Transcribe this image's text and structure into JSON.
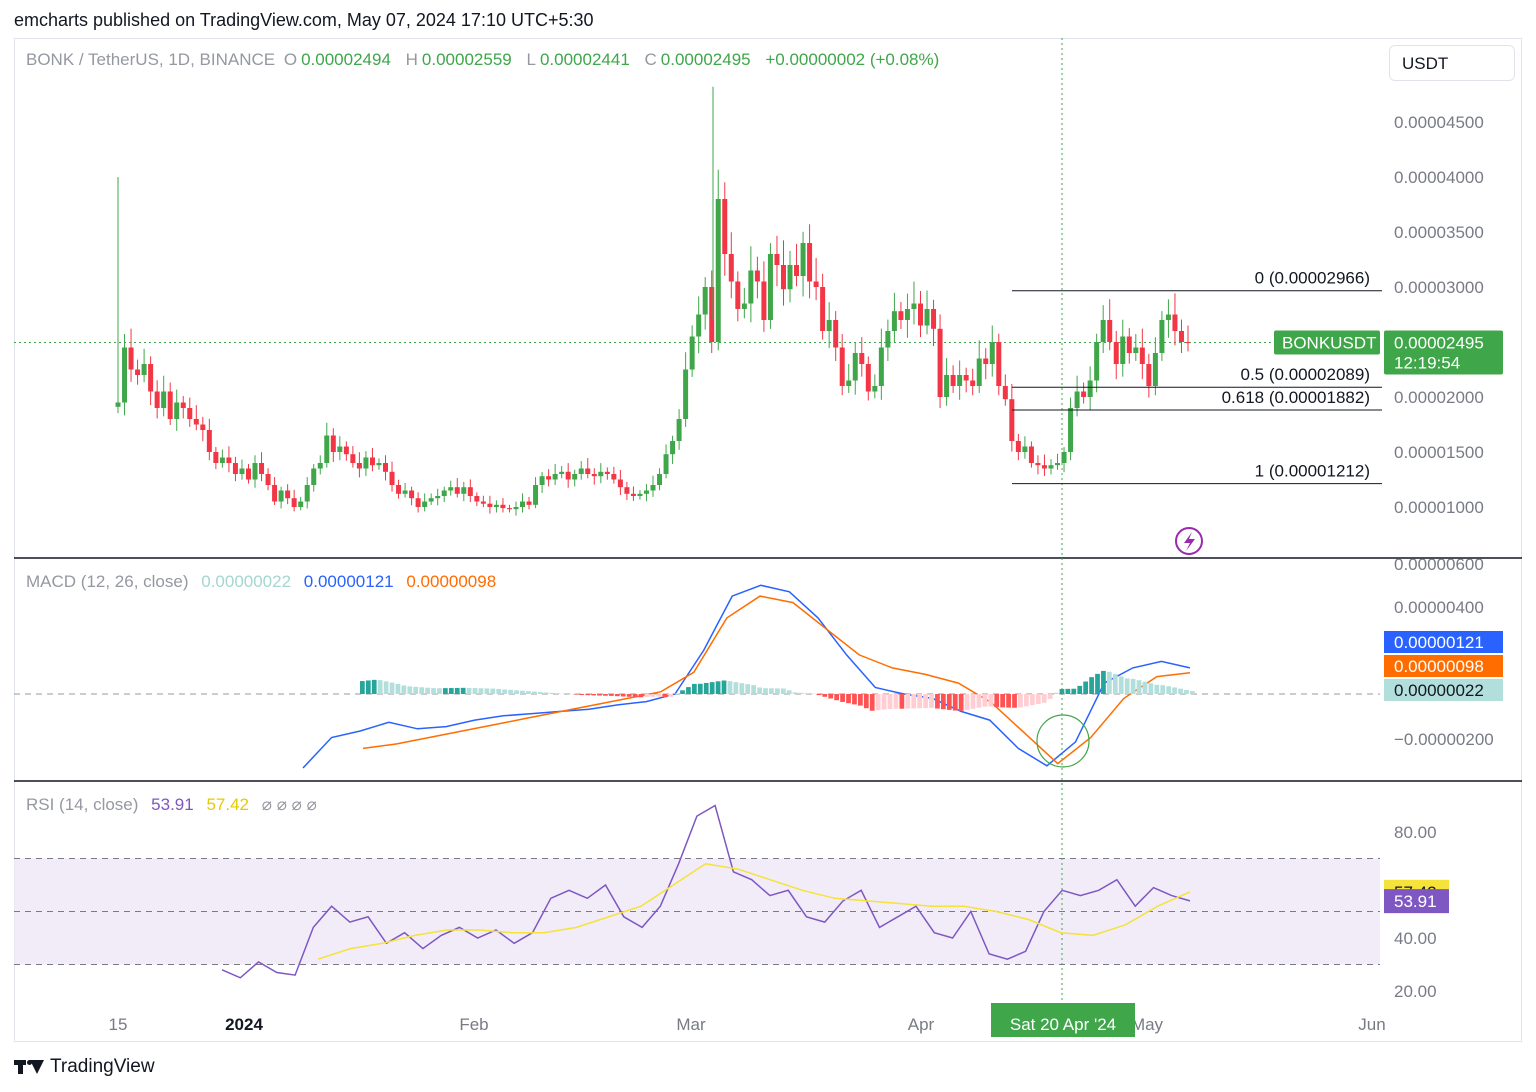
{
  "header": {
    "published": "emcharts published on TradingView.com, May 07, 2024 17:10 UTC+5:30"
  },
  "legend": {
    "symbol": "BONK / TetherUS, 1D, BINANCE",
    "o_label": "O",
    "o_value": "0.00002494",
    "h_label": "H",
    "h_value": "0.00002559",
    "l_label": "L",
    "l_value": "0.00002441",
    "c_label": "C",
    "c_value": "0.00002495",
    "change": "+0.00000002 (+0.08%)"
  },
  "currency_button": "USDT",
  "price_panel": {
    "y_ticks": [
      "0.00004500",
      "0.00004000",
      "0.00003500",
      "0.00003000",
      "0.00002000",
      "0.00001500",
      "0.00001000",
      "0.00000600"
    ],
    "last_price_symbol": "BONKUSDT",
    "last_price": "0.00002495",
    "countdown": "12:19:54",
    "fib_levels": [
      {
        "label": "0 (0.00002966)",
        "value": 2.966e-05
      },
      {
        "label": "0.5 (0.00002089)",
        "value": 2.089e-05
      },
      {
        "label": "0.618 (0.00001882)",
        "value": 1.882e-05
      },
      {
        "label": "1 (0.00001212)",
        "value": 1.212e-05
      }
    ]
  },
  "macd_panel": {
    "legend_name": "MACD (12, 26, close)",
    "hist_value": "0.00000022",
    "macd_value": "0.00000121",
    "signal_value": "0.00000098",
    "y_ticks": [
      "0.00000400",
      "−0.00000200"
    ]
  },
  "rsi_panel": {
    "legend_name": "RSI (14, close)",
    "rsi_value": "53.91",
    "ma_value": "57.42",
    "extra": "⌀ ⌀ ⌀ ⌀",
    "y_ticks": [
      "80.00",
      "40.00",
      "20.00"
    ]
  },
  "time_axis": {
    "labels": [
      "15",
      "2024",
      "Feb",
      "Mar",
      "Apr",
      "May",
      "Jun"
    ],
    "crosshair_label": "Sat 20 Apr '24"
  },
  "footer": {
    "brand": "TradingView"
  },
  "colors": {
    "up": "#3fa64a",
    "down": "#f23645",
    "macd": "#2962ff",
    "signal": "#ff6d00",
    "rsi": "#7e57c2",
    "rsi_ma": "#f5e23a",
    "hist_up_strong": "#26a69a",
    "hist_up_weak": "#b2dfdb",
    "hist_down_strong": "#ff5252",
    "hist_down_weak": "#ffcdd2"
  },
  "chart_data": [
    {
      "type": "candlestick",
      "title": "BONK / TetherUS, 1D, BINANCE",
      "x_range": [
        "2023-12-12",
        "2024-06-01"
      ],
      "ylim": [
        6e-06,
        4.8e-05
      ],
      "closes": [
        1.95e-05,
        2.45e-05,
        2.25e-05,
        2.2e-05,
        2.3e-05,
        2.05e-05,
        1.9e-05,
        2.05e-05,
        1.8e-05,
        1.95e-05,
        1.9e-05,
        1.8e-05,
        1.75e-05,
        1.7e-05,
        1.5e-05,
        1.4e-05,
        1.45e-05,
        1.4e-05,
        1.3e-05,
        1.35e-05,
        1.25e-05,
        1.4e-05,
        1.3e-05,
        1.2e-05,
        1.05e-05,
        1.15e-05,
        1.08e-05,
        1e-05,
        1.05e-05,
        1.2e-05,
        1.35e-05,
        1.4e-05,
        1.65e-05,
        1.5e-05,
        1.55e-05,
        1.48e-05,
        1.4e-05,
        1.35e-05,
        1.45e-05,
        1.38e-05,
        1.4e-05,
        1.32e-05,
        1.2e-05,
        1.12e-05,
        1.15e-05,
        1.08e-05,
        1e-05,
        1.05e-05,
        1.08e-05,
        1.1e-05,
        1.15e-05,
        1.18e-05,
        1.12e-05,
        1.18e-05,
        1.1e-05,
        1.05e-05,
        1.03e-05,
        1e-05,
        1.02e-05,
        9.9e-06,
        9.8e-06,
        1e-05,
        1.05e-05,
        1.02e-05,
        1.2e-05,
        1.28e-05,
        1.25e-05,
        1.3e-05,
        1.32e-05,
        1.25e-05,
        1.3e-05,
        1.35e-05,
        1.3e-05,
        1.28e-05,
        1.32e-05,
        1.3e-05,
        1.25e-05,
        1.18e-05,
        1.12e-05,
        1.1e-05,
        1.12e-05,
        1.15e-05,
        1.2e-05,
        1.3e-05,
        1.48e-05,
        1.6e-05,
        1.8e-05,
        2.25e-05,
        2.55e-05,
        2.75e-05,
        3e-05,
        2.5e-05,
        3.8e-05,
        3.3e-05,
        3.05e-05,
        2.8e-05,
        2.85e-05,
        3.15e-05,
        3.05e-05,
        2.7e-05,
        3.3e-05,
        3.2e-05,
        2.98e-05,
        3.2e-05,
        3.1e-05,
        3.4e-05,
        3.05e-05,
        3e-05,
        2.6e-05,
        2.7e-05,
        2.45e-05,
        2.1e-05,
        2.15e-05,
        2.4e-05,
        2.3e-05,
        2.05e-05,
        2.1e-05,
        2.45e-05,
        2.6e-05,
        2.78e-05,
        2.7e-05,
        2.8e-05,
        2.85e-05,
        2.65e-05,
        2.8e-05,
        2.62e-05,
        2e-05,
        2.2e-05,
        2.1e-05,
        2.2e-05,
        2.15e-05,
        2.1e-05,
        2.35e-05,
        2.3e-05,
        2.5e-05,
        2.1e-05,
        1.98e-05,
        1.6e-05,
        1.5e-05,
        1.55e-05,
        1.4e-05,
        1.38e-05,
        1.35e-05,
        1.38e-05,
        1.4e-05,
        1.5e-05,
        1.9e-05,
        2.05e-05,
        2e-05,
        2.15e-05,
        2.5e-05,
        2.7e-05,
        2.5e-05,
        2.3e-05,
        2.55e-05,
        2.4e-05,
        2.45e-05,
        2.3e-05,
        2.1e-05,
        2.4e-05,
        2.7e-05,
        2.75e-05,
        2.6e-05,
        2.5e-05,
        2.49e-05
      ],
      "fib_levels": [
        2.966e-05,
        2.089e-05,
        1.882e-05,
        1.212e-05
      ]
    },
    {
      "type": "line",
      "title": "MACD (12, 26, close)",
      "ylim": [
        -4e-06,
        6e-06
      ],
      "series": [
        {
          "name": "MACD",
          "values": [
            -3.4e-06,
            -2e-06,
            -1.7e-06,
            -1.3e-06,
            -1.6e-06,
            -1.5e-06,
            -1.2e-06,
            -1e-06,
            -9e-07,
            -8e-07,
            -7e-07,
            -5e-07,
            -3.5e-07,
            0.0,
            2e-06,
            4.5e-06,
            5e-06,
            4.7e-06,
            3.5e-06,
            1.8e-06,
            3e-07,
            0.0,
            -2e-07,
            -8e-07,
            -1.2e-06,
            -2.5e-06,
            -3.3e-06,
            -2.2e-06,
            5e-07,
            1.2e-06,
            1.5e-06,
            1.2e-06
          ]
        },
        {
          "name": "Signal",
          "values": [
            -2.5e-06,
            -2.3e-06,
            -2e-06,
            -1.7e-06,
            -1.4e-06,
            -1.1e-06,
            -8e-07,
            -5e-07,
            -2e-07,
            1e-07,
            1e-06,
            3.5e-06,
            4.5e-06,
            4.2e-06,
            3e-06,
            1.8e-06,
            1.2e-06,
            9e-07,
            5e-07,
            -4e-07,
            -1.8e-06,
            -3.2e-06,
            -2e-06,
            -2e-07,
            8e-07,
            9.8e-07
          ]
        }
      ],
      "histogram_last": 2.2e-07
    },
    {
      "type": "line",
      "title": "RSI (14, close)",
      "ylim": [
        15,
        95
      ],
      "bands": [
        70,
        50,
        30
      ],
      "series": [
        {
          "name": "RSI",
          "values": [
            28,
            25,
            31,
            27,
            26,
            44,
            52,
            46,
            48,
            38,
            42,
            36,
            41,
            44,
            40,
            43,
            38,
            42,
            55,
            58,
            55,
            60,
            48,
            44,
            52,
            68,
            86,
            90,
            65,
            62,
            56,
            58,
            48,
            46,
            54,
            58,
            44,
            48,
            52,
            42,
            40,
            50,
            34,
            32,
            35,
            50,
            58,
            56,
            58,
            62,
            52,
            59,
            56,
            54
          ]
        },
        {
          "name": "RSI MA",
          "values": [
            32,
            36,
            38,
            41,
            43,
            43,
            42,
            42,
            44,
            48,
            52,
            60,
            68,
            66,
            62,
            58,
            55,
            54,
            53,
            52,
            52,
            50,
            47,
            42,
            41,
            45,
            52,
            57.4
          ]
        }
      ]
    }
  ]
}
